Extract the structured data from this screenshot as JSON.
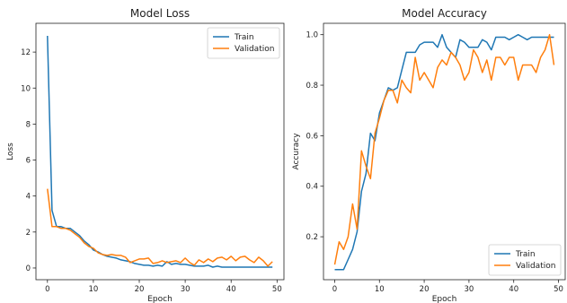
{
  "colors": {
    "train": "#1f77b4",
    "validation": "#ff7f0e"
  },
  "chart_data": [
    {
      "type": "line",
      "title": "Model Loss",
      "xlabel": "Epoch",
      "ylabel": "Loss",
      "xlim": [
        -2.5,
        51.5
      ],
      "ylim": [
        -0.65,
        13.6
      ],
      "xticks": [
        0,
        10,
        20,
        30,
        40,
        50
      ],
      "xtick_labels": [
        "0",
        "10",
        "20",
        "30",
        "40",
        "50"
      ],
      "yticks": [
        0,
        2,
        4,
        6,
        8,
        10,
        12
      ],
      "ytick_labels": [
        "0",
        "2",
        "4",
        "6",
        "8",
        "10",
        "12"
      ],
      "legend": {
        "position": "top-right",
        "entries": [
          "Train",
          "Validation"
        ]
      },
      "grid": false,
      "series": [
        {
          "name": "Train",
          "color": "#1f77b4",
          "x": [
            0,
            1,
            2,
            3,
            4,
            5,
            6,
            7,
            8,
            9,
            10,
            11,
            12,
            13,
            14,
            15,
            16,
            17,
            18,
            19,
            20,
            21,
            22,
            23,
            24,
            25,
            26,
            27,
            28,
            29,
            30,
            31,
            32,
            33,
            34,
            35,
            36,
            37,
            38,
            39,
            40,
            41,
            42,
            43,
            44,
            45,
            46,
            47,
            48,
            49
          ],
          "y": [
            12.9,
            3.2,
            2.3,
            2.3,
            2.2,
            2.2,
            2.0,
            1.8,
            1.5,
            1.3,
            1.0,
            0.9,
            0.75,
            0.65,
            0.6,
            0.55,
            0.45,
            0.4,
            0.35,
            0.25,
            0.2,
            0.15,
            0.15,
            0.1,
            0.15,
            0.1,
            0.35,
            0.2,
            0.25,
            0.2,
            0.2,
            0.15,
            0.1,
            0.1,
            0.1,
            0.15,
            0.05,
            0.1,
            0.05,
            0.05,
            0.05,
            0.05,
            0.05,
            0.05,
            0.05,
            0.05,
            0.05,
            0.05,
            0.05,
            0.05
          ]
        },
        {
          "name": "Validation",
          "color": "#ff7f0e",
          "x": [
            0,
            1,
            2,
            3,
            4,
            5,
            6,
            7,
            8,
            9,
            10,
            11,
            12,
            13,
            14,
            15,
            16,
            17,
            18,
            19,
            20,
            21,
            22,
            23,
            24,
            25,
            26,
            27,
            28,
            29,
            30,
            31,
            32,
            33,
            34,
            35,
            36,
            37,
            38,
            39,
            40,
            41,
            42,
            43,
            44,
            45,
            46,
            47,
            48,
            49
          ],
          "y": [
            4.4,
            2.3,
            2.3,
            2.2,
            2.2,
            2.1,
            1.9,
            1.7,
            1.4,
            1.2,
            1.1,
            0.85,
            0.75,
            0.7,
            0.75,
            0.7,
            0.7,
            0.6,
            0.3,
            0.4,
            0.5,
            0.5,
            0.55,
            0.25,
            0.3,
            0.4,
            0.3,
            0.35,
            0.4,
            0.3,
            0.55,
            0.3,
            0.15,
            0.45,
            0.3,
            0.5,
            0.35,
            0.55,
            0.6,
            0.45,
            0.65,
            0.4,
            0.6,
            0.65,
            0.45,
            0.3,
            0.6,
            0.4,
            0.1,
            0.35
          ]
        }
      ]
    },
    {
      "type": "line",
      "title": "Model Accuracy",
      "xlabel": "Epoch",
      "ylabel": "Accuracy",
      "xlim": [
        -2.5,
        51.5
      ],
      "ylim": [
        0.03,
        1.045
      ],
      "xticks": [
        0,
        10,
        20,
        30,
        40,
        50
      ],
      "xtick_labels": [
        "0",
        "10",
        "20",
        "30",
        "40",
        "50"
      ],
      "yticks": [
        0.2,
        0.4,
        0.6,
        0.8,
        1.0
      ],
      "ytick_labels": [
        "0.2",
        "0.4",
        "0.6",
        "0.8",
        "1.0"
      ],
      "legend": {
        "position": "bottom-right",
        "entries": [
          "Train",
          "Validation"
        ]
      },
      "grid": false,
      "series": [
        {
          "name": "Train",
          "color": "#1f77b4",
          "x": [
            0,
            1,
            2,
            3,
            4,
            5,
            6,
            7,
            8,
            9,
            10,
            11,
            12,
            13,
            14,
            15,
            16,
            17,
            18,
            19,
            20,
            21,
            22,
            23,
            24,
            25,
            26,
            27,
            28,
            29,
            30,
            31,
            32,
            33,
            34,
            35,
            36,
            37,
            38,
            39,
            40,
            41,
            42,
            43,
            44,
            45,
            46,
            47,
            48,
            49
          ],
          "y": [
            0.07,
            0.07,
            0.07,
            0.11,
            0.15,
            0.22,
            0.38,
            0.45,
            0.61,
            0.58,
            0.69,
            0.74,
            0.79,
            0.78,
            0.79,
            0.86,
            0.93,
            0.93,
            0.93,
            0.96,
            0.97,
            0.97,
            0.97,
            0.95,
            1.0,
            0.95,
            0.93,
            0.91,
            0.98,
            0.97,
            0.95,
            0.95,
            0.95,
            0.98,
            0.97,
            0.94,
            0.99,
            0.99,
            0.99,
            0.98,
            0.99,
            1.0,
            0.99,
            0.98,
            0.99,
            0.99,
            0.99,
            0.99,
            0.99,
            0.99
          ]
        },
        {
          "name": "Validation",
          "color": "#ff7f0e",
          "x": [
            0,
            1,
            2,
            3,
            4,
            5,
            6,
            7,
            8,
            9,
            10,
            11,
            12,
            13,
            14,
            15,
            16,
            17,
            18,
            19,
            20,
            21,
            22,
            23,
            24,
            25,
            26,
            27,
            28,
            29,
            30,
            31,
            32,
            33,
            34,
            35,
            36,
            37,
            38,
            39,
            40,
            41,
            42,
            43,
            44,
            45,
            46,
            47,
            48,
            49
          ],
          "y": [
            0.09,
            0.18,
            0.15,
            0.2,
            0.33,
            0.23,
            0.54,
            0.48,
            0.43,
            0.61,
            0.67,
            0.74,
            0.78,
            0.78,
            0.73,
            0.82,
            0.79,
            0.77,
            0.91,
            0.82,
            0.85,
            0.82,
            0.79,
            0.87,
            0.9,
            0.88,
            0.93,
            0.91,
            0.88,
            0.82,
            0.85,
            0.94,
            0.91,
            0.85,
            0.9,
            0.82,
            0.91,
            0.91,
            0.88,
            0.91,
            0.91,
            0.82,
            0.88,
            0.88,
            0.88,
            0.85,
            0.91,
            0.94,
            1.0,
            0.88
          ]
        }
      ]
    }
  ]
}
